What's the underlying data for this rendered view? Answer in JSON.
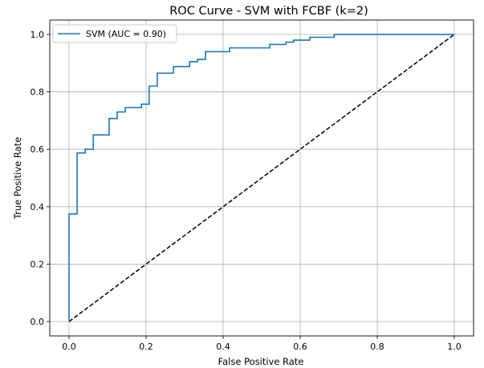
{
  "chart_data": {
    "type": "line",
    "title": "ROC Curve - SVM with FCBF (k=2)",
    "xlabel": "False Positive Rate",
    "ylabel": "True Positive Rate",
    "xlim": [
      -0.05,
      1.05
    ],
    "ylim": [
      -0.05,
      1.05
    ],
    "xticks": [
      0.0,
      0.2,
      0.4,
      0.6,
      0.8,
      1.0
    ],
    "yticks": [
      0.0,
      0.2,
      0.4,
      0.6,
      0.8,
      1.0
    ],
    "xtick_labels": [
      "0.0",
      "0.2",
      "0.4",
      "0.6",
      "0.8",
      "1.0"
    ],
    "ytick_labels": [
      "0.0",
      "0.2",
      "0.4",
      "0.6",
      "0.8",
      "1.0"
    ],
    "grid": true,
    "legend_position": "upper-left",
    "series": [
      {
        "name": "SVM (AUC = 0.90)",
        "color": "#1f77b4",
        "style": "solid",
        "x": [
          0.0,
          0.0,
          0.0,
          0.0,
          0.021,
          0.021,
          0.042,
          0.042,
          0.063,
          0.063,
          0.104,
          0.104,
          0.125,
          0.125,
          0.146,
          0.146,
          0.188,
          0.188,
          0.208,
          0.208,
          0.229,
          0.229,
          0.271,
          0.271,
          0.313,
          0.313,
          0.333,
          0.333,
          0.354,
          0.354,
          0.417,
          0.417,
          0.521,
          0.521,
          0.563,
          0.563,
          0.583,
          0.583,
          0.625,
          0.625,
          0.688,
          0.688,
          1.0
        ],
        "y": [
          0.0,
          0.375,
          0.375,
          0.375,
          0.375,
          0.587,
          0.587,
          0.6,
          0.6,
          0.65,
          0.65,
          0.707,
          0.707,
          0.73,
          0.73,
          0.745,
          0.745,
          0.757,
          0.757,
          0.82,
          0.82,
          0.865,
          0.865,
          0.888,
          0.888,
          0.905,
          0.905,
          0.913,
          0.913,
          0.94,
          0.94,
          0.953,
          0.953,
          0.965,
          0.965,
          0.973,
          0.973,
          0.98,
          0.98,
          0.99,
          0.99,
          1.0,
          1.0
        ]
      },
      {
        "color": "#000000",
        "style": "dashed",
        "x": [
          0.0,
          1.0
        ],
        "y": [
          0.0,
          1.0
        ]
      }
    ]
  }
}
